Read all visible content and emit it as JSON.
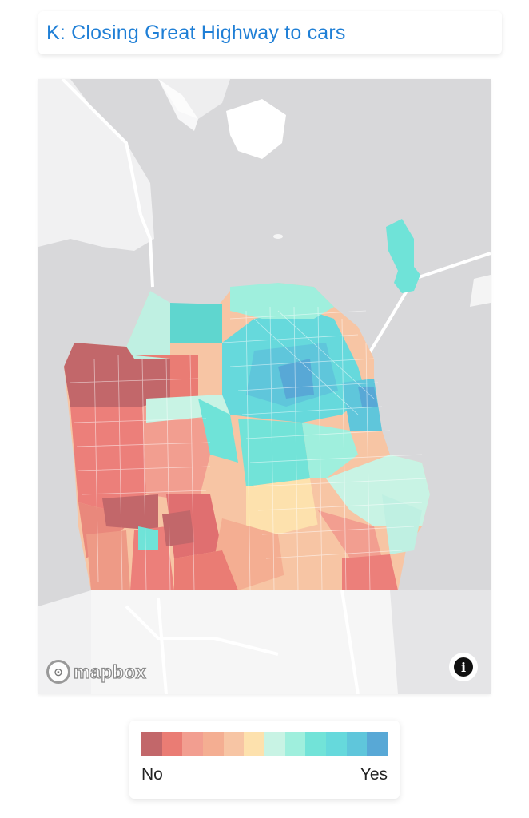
{
  "header": {
    "title": "K: Closing Great Highway to cars"
  },
  "map": {
    "attribution_logo": "mapbox",
    "info_icon": "info-icon",
    "colors": {
      "water": "#d8d8da",
      "land": "#f3f3f4",
      "road": "#ffffff",
      "no_strong": "#c2676a",
      "no": "#ec7f7a",
      "neutral_no": "#f6c3a0",
      "neutral": "#fde1ad",
      "yes": "#6fe3d8",
      "yes_strong": "#58a8d6"
    }
  },
  "legend": {
    "low_label": "No",
    "high_label": "Yes",
    "colors": [
      "#c2676a",
      "#ea7c74",
      "#f29e90",
      "#f4ae92",
      "#f7c5a4",
      "#fde1ad",
      "#c8f3e4",
      "#9fefdd",
      "#72e3d8",
      "#66d9dc",
      "#5fc6db",
      "#58a8d6"
    ]
  }
}
